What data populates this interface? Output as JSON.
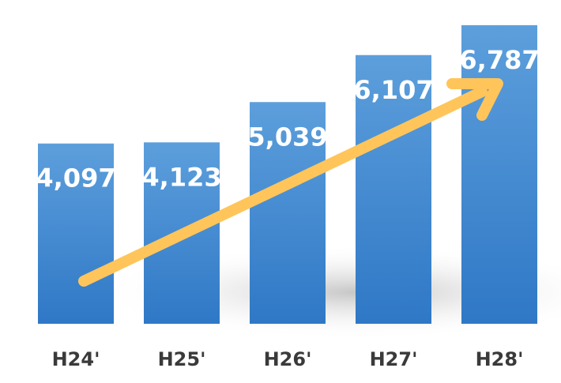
{
  "chart_data": {
    "type": "bar",
    "categories": [
      "H24'",
      "H25'",
      "H26'",
      "H27'",
      "H28'"
    ],
    "values": [
      4097,
      4123,
      5039,
      6107,
      6787
    ],
    "value_labels": [
      "4,097",
      "4,123",
      "5,039",
      "6,107",
      "6,787"
    ],
    "color": "#3d85cf",
    "ylim": [
      0,
      7000
    ]
  }
}
